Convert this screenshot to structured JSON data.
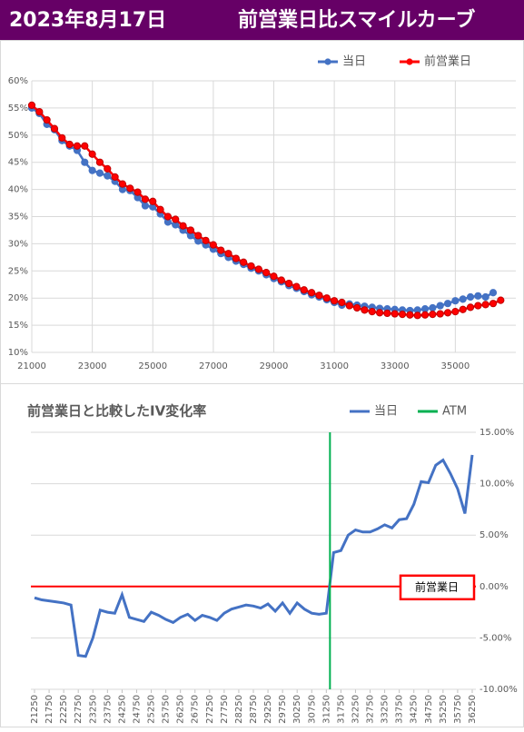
{
  "header": {
    "date": "2023年8月17日",
    "title": "前営業日比スマイルカーブ"
  },
  "chart_data": [
    {
      "type": "line",
      "markers": true,
      "grid": true,
      "xlim": [
        21000,
        37000
      ],
      "xticks": [
        21000,
        23000,
        25000,
        27000,
        29000,
        31000,
        33000,
        35000
      ],
      "ylim": [
        10,
        60
      ],
      "yticks": [
        {
          "value": 10,
          "label": "10%"
        },
        {
          "value": 15,
          "label": "15%"
        },
        {
          "value": 20,
          "label": "20%"
        },
        {
          "value": 25,
          "label": "25%"
        },
        {
          "value": 30,
          "label": "30%"
        },
        {
          "value": 35,
          "label": "35%"
        },
        {
          "value": 40,
          "label": "40%"
        },
        {
          "value": 45,
          "label": "45%"
        },
        {
          "value": 50,
          "label": "50%"
        },
        {
          "value": 55,
          "label": "55%"
        },
        {
          "value": 60,
          "label": "60%"
        }
      ],
      "series": [
        {
          "name": "当日",
          "color": "#4472c4",
          "x": [
            21000,
            21250,
            21500,
            21750,
            22000,
            22250,
            22500,
            22750,
            23000,
            23250,
            23500,
            23750,
            24000,
            24250,
            24500,
            24750,
            25000,
            25250,
            25500,
            25750,
            26000,
            26250,
            26500,
            26750,
            27000,
            27250,
            27500,
            27750,
            28000,
            28250,
            28500,
            28750,
            29000,
            29250,
            29500,
            29750,
            30000,
            30250,
            30500,
            30750,
            31000,
            31250,
            31500,
            31750,
            32000,
            32250,
            32500,
            32750,
            33000,
            33250,
            33500,
            33750,
            34000,
            34250,
            34500,
            34750,
            35000,
            35250,
            35500,
            35750,
            36000,
            36250
          ],
          "values": [
            55,
            54,
            52,
            51,
            49,
            48,
            47.2,
            45,
            43.5,
            43,
            42.5,
            41.5,
            40,
            39.8,
            38.5,
            37,
            36.8,
            35.5,
            34,
            33.5,
            32.5,
            31.5,
            30.5,
            29.8,
            29,
            28.2,
            27.5,
            26.8,
            26.2,
            25.5,
            25,
            24.3,
            23.6,
            23,
            22.3,
            21.8,
            21.2,
            20.6,
            20.2,
            19.7,
            19.2,
            18.7,
            18.9,
            18.7,
            18.5,
            18.3,
            18.1,
            18,
            17.9,
            17.8,
            17.7,
            17.8,
            18,
            18.2,
            18.6,
            19,
            19.5,
            19.8,
            20.2,
            20.4,
            20.2,
            21
          ]
        },
        {
          "name": "前営業日",
          "color": "#ff0000",
          "x": [
            21000,
            21250,
            21500,
            21750,
            22000,
            22250,
            22500,
            22750,
            23000,
            23250,
            23500,
            23750,
            24000,
            24250,
            24500,
            24750,
            25000,
            25250,
            25500,
            25750,
            26000,
            26250,
            26500,
            26750,
            27000,
            27250,
            27500,
            27750,
            28000,
            28250,
            28500,
            28750,
            29000,
            29250,
            29500,
            29750,
            30000,
            30250,
            30500,
            30750,
            31000,
            31250,
            31500,
            31750,
            32000,
            32250,
            32500,
            32750,
            33000,
            33250,
            33500,
            33750,
            34000,
            34250,
            34500,
            34750,
            35000,
            35250,
            35500,
            35750,
            36000,
            36250,
            36500
          ],
          "values": [
            55.5,
            54.3,
            52.8,
            51.2,
            49.5,
            48.3,
            48,
            48,
            46.5,
            45,
            43.8,
            42.3,
            41,
            40.2,
            39.5,
            38.2,
            37.8,
            36.3,
            35,
            34.5,
            33.3,
            32.5,
            31.5,
            30.6,
            29.8,
            28.8,
            28.2,
            27.3,
            26.6,
            25.9,
            25.3,
            24.7,
            24,
            23.3,
            22.7,
            22.1,
            21.5,
            21,
            20.5,
            20,
            19.5,
            19.2,
            18.6,
            18.2,
            17.8,
            17.5,
            17.3,
            17.2,
            17.1,
            17,
            16.9,
            16.8,
            16.9,
            17,
            17.1,
            17.3,
            17.5,
            17.9,
            18.3,
            18.6,
            18.8,
            19,
            19.6
          ]
        }
      ]
    },
    {
      "type": "line",
      "markers": false,
      "grid": true,
      "title": "前営業日と比較したIV変化率",
      "xlim": [
        21125,
        36375
      ],
      "xticks": [
        21250,
        21750,
        22250,
        22750,
        23250,
        23750,
        24250,
        24750,
        25250,
        25750,
        26250,
        26750,
        27250,
        27750,
        28250,
        28750,
        29250,
        29750,
        30250,
        30750,
        31250,
        31750,
        32250,
        32750,
        33250,
        33750,
        34250,
        34750,
        35250,
        35750,
        36250
      ],
      "y2lim": [
        -10,
        15
      ],
      "y2ticks": [
        {
          "value": -10,
          "label": "-10.00%"
        },
        {
          "value": -5,
          "label": "-5.00%"
        },
        {
          "value": 0,
          "label": "0.00%"
        },
        {
          "value": 5,
          "label": "5.00%"
        },
        {
          "value": 10,
          "label": "10.00%"
        },
        {
          "value": 15,
          "label": "15.00%"
        }
      ],
      "reference_line": {
        "value": 0,
        "label": "前営業日",
        "color": "#ff0000",
        "axis": "y2"
      },
      "series": [
        {
          "name": "当日",
          "color": "#4472c4",
          "axis": "y2",
          "x": [
            21250,
            21500,
            21750,
            22000,
            22250,
            22500,
            22750,
            23000,
            23250,
            23500,
            23750,
            24000,
            24250,
            24500,
            24750,
            25000,
            25250,
            25500,
            25750,
            26000,
            26250,
            26500,
            26750,
            27000,
            27250,
            27500,
            27750,
            28000,
            28250,
            28500,
            28750,
            29000,
            29250,
            29500,
            29750,
            30000,
            30250,
            30500,
            30750,
            31000,
            31250,
            31500,
            31750,
            32000,
            32250,
            32500,
            32750,
            33000,
            33250,
            33500,
            33750,
            34000,
            34250,
            34500,
            34750,
            35000,
            35250,
            35500,
            35750,
            36000,
            36250
          ],
          "values": [
            -1.1,
            -1.3,
            -1.4,
            -1.5,
            -1.6,
            -1.8,
            -6.7,
            -6.8,
            -5,
            -2.3,
            -2.5,
            -2.6,
            -0.8,
            -3,
            -3.2,
            -3.4,
            -2.5,
            -2.8,
            -3.2,
            -3.5,
            -3,
            -2.7,
            -3.3,
            -2.8,
            -3,
            -3.3,
            -2.6,
            -2.2,
            -2,
            -1.8,
            -1.9,
            -2.1,
            -1.7,
            -2.4,
            -1.6,
            -2.6,
            -1.6,
            -2.2,
            -2.6,
            -2.7,
            -2.6,
            3.3,
            3.5,
            5,
            5.5,
            5.3,
            5.3,
            5.6,
            6,
            5.7,
            6.5,
            6.6,
            8,
            10.2,
            10.1,
            11.8,
            12.3,
            11,
            9.5,
            7.1,
            12.8
          ]
        },
        {
          "name": "ATM",
          "color": "#00b050",
          "x": [
            31375
          ]
        }
      ]
    }
  ]
}
